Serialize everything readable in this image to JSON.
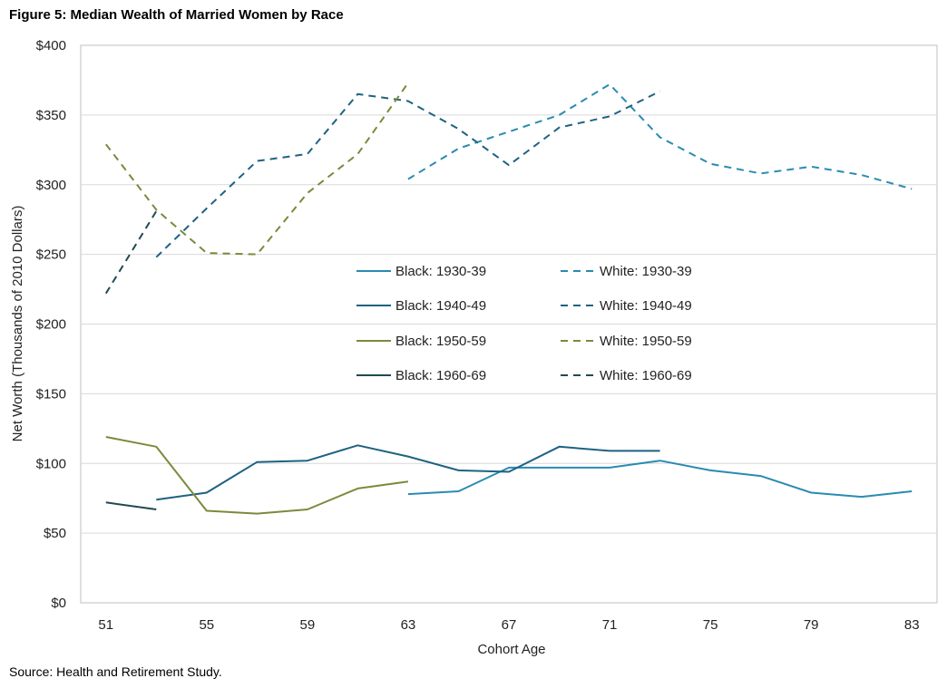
{
  "figure_title": "Figure 5: Median Wealth of Married Women by Race",
  "source": "Source: Health and Retirement Study.",
  "chart_data": {
    "type": "line",
    "title": "Figure 5: Median Wealth of Married Women by Race",
    "xlabel": "Cohort Age",
    "ylabel": "Net Worth (Thousands of 2010 Dollars)",
    "xlim": [
      50,
      84
    ],
    "ylim": [
      0,
      400
    ],
    "x_ticks": [
      51,
      55,
      59,
      63,
      67,
      71,
      75,
      79,
      83
    ],
    "y_ticks": [
      0,
      50,
      100,
      150,
      200,
      250,
      300,
      350,
      400
    ],
    "y_tick_labels": [
      "$0",
      "$50",
      "$100",
      "$150",
      "$200",
      "$250",
      "$300",
      "$350",
      "$400"
    ],
    "x_tick_labels": [
      "51",
      "55",
      "59",
      "63",
      "67",
      "71",
      "75",
      "79",
      "83"
    ],
    "grid": "horizontal",
    "colors": {
      "c1930": "#2a8bb0",
      "c1940": "#1e6282",
      "c1950": "#7a8a3c",
      "c1960": "#1f4a4f"
    },
    "series": [
      {
        "name": "Black: 1930-39",
        "style": "solid",
        "color_key": "c1930",
        "x": [
          63,
          65,
          67,
          69,
          71,
          73,
          75,
          77,
          79,
          81,
          83
        ],
        "y": [
          78,
          80,
          97,
          97,
          97,
          102,
          95,
          91,
          79,
          76,
          80
        ]
      },
      {
        "name": "White: 1930-39",
        "style": "dashed",
        "color_key": "c1930",
        "x": [
          63,
          65,
          67,
          69,
          71,
          73,
          75,
          77,
          79,
          81,
          83
        ],
        "y": [
          304,
          326,
          338,
          350,
          372,
          334,
          315,
          308,
          313,
          307,
          297
        ]
      },
      {
        "name": "Black: 1940-49",
        "style": "solid",
        "color_key": "c1940",
        "x": [
          53,
          55,
          57,
          59,
          61,
          63,
          65,
          67,
          69,
          71,
          73
        ],
        "y": [
          74,
          79,
          101,
          102,
          113,
          105,
          95,
          94,
          112,
          109,
          109
        ]
      },
      {
        "name": "White: 1940-49",
        "style": "dashed",
        "color_key": "c1940",
        "x": [
          53,
          55,
          57,
          59,
          61,
          63,
          65,
          67,
          69,
          71,
          73
        ],
        "y": [
          248,
          283,
          317,
          322,
          365,
          360,
          340,
          314,
          341,
          349,
          367
        ]
      },
      {
        "name": "Black: 1950-59",
        "style": "solid",
        "color_key": "c1950",
        "x": [
          51,
          53,
          55,
          57,
          59,
          61,
          63
        ],
        "y": [
          119,
          112,
          66,
          64,
          67,
          82,
          87
        ]
      },
      {
        "name": "White: 1950-59",
        "style": "dashed",
        "color_key": "c1950",
        "x": [
          51,
          53,
          55,
          57,
          59,
          61,
          63
        ],
        "y": [
          329,
          282,
          251,
          250,
          294,
          322,
          373
        ]
      },
      {
        "name": "Black: 1960-69",
        "style": "solid",
        "color_key": "c1960",
        "x": [
          51,
          53
        ],
        "y": [
          72,
          67
        ]
      },
      {
        "name": "White: 1960-69",
        "style": "dashed",
        "color_key": "c1960",
        "x": [
          51,
          53
        ],
        "y": [
          222,
          281
        ]
      }
    ],
    "legend": {
      "placement": "center",
      "columns": 2
    }
  }
}
